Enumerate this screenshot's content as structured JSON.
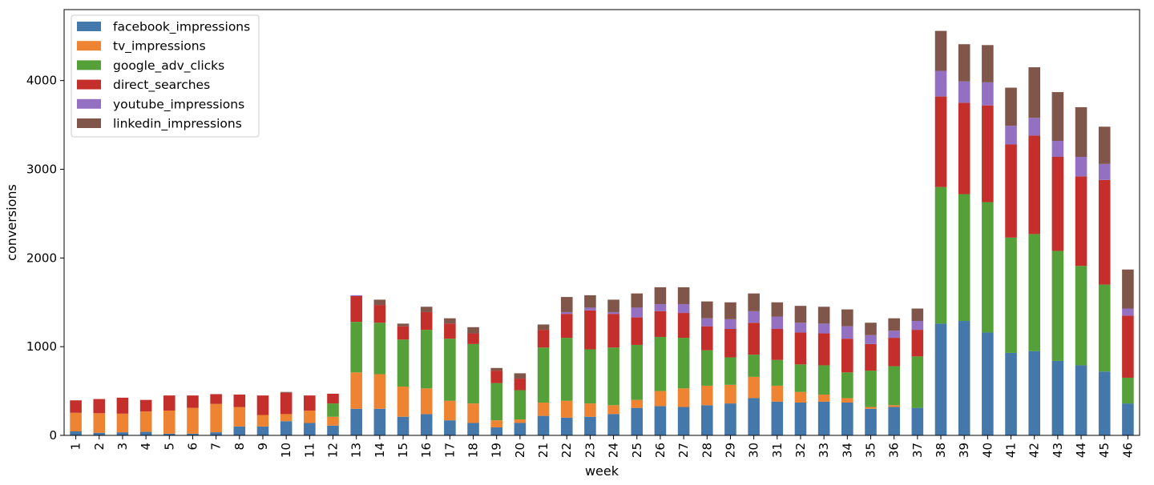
{
  "chart_data": {
    "type": "bar",
    "stacked": true,
    "xlabel": "week",
    "ylabel": "conversions",
    "ylim": [
      0,
      4800
    ],
    "yticks": [
      0,
      1000,
      2000,
      3000,
      4000
    ],
    "grid": false,
    "legend_position": "top-left",
    "categories": [
      "1",
      "2",
      "3",
      "4",
      "5",
      "6",
      "7",
      "8",
      "9",
      "10",
      "11",
      "12",
      "13",
      "14",
      "15",
      "16",
      "17",
      "18",
      "19",
      "20",
      "21",
      "22",
      "23",
      "24",
      "25",
      "26",
      "27",
      "28",
      "29",
      "30",
      "31",
      "32",
      "33",
      "34",
      "35",
      "36",
      "37",
      "38",
      "39",
      "40",
      "41",
      "42",
      "43",
      "44",
      "45",
      "46"
    ],
    "series": [
      {
        "name": "facebook_impressions",
        "color": "#4477aa",
        "values": [
          45,
          30,
          35,
          40,
          20,
          20,
          35,
          100,
          100,
          160,
          140,
          110,
          300,
          300,
          210,
          240,
          170,
          140,
          90,
          140,
          220,
          200,
          210,
          240,
          310,
          330,
          320,
          340,
          360,
          420,
          380,
          370,
          380,
          370,
          300,
          320,
          310,
          1260,
          1290,
          1160,
          930,
          950,
          840,
          790,
          720,
          360
        ]
      },
      {
        "name": "tv_impressions",
        "color": "#ee8432",
        "values": [
          210,
          220,
          210,
          230,
          260,
          290,
          320,
          220,
          130,
          80,
          140,
          100,
          410,
          390,
          340,
          290,
          220,
          220,
          80,
          40,
          150,
          190,
          150,
          100,
          90,
          170,
          210,
          220,
          210,
          240,
          180,
          120,
          80,
          50,
          20,
          20,
          0,
          0,
          0,
          0,
          0,
          0,
          0,
          0,
          0,
          0
        ]
      },
      {
        "name": "google_adv_clicks",
        "color": "#55a038",
        "values": [
          0,
          0,
          0,
          0,
          0,
          0,
          0,
          0,
          0,
          0,
          0,
          150,
          570,
          580,
          530,
          660,
          700,
          670,
          420,
          330,
          620,
          710,
          610,
          650,
          620,
          610,
          570,
          400,
          310,
          250,
          290,
          310,
          330,
          290,
          410,
          440,
          580,
          1540,
          1430,
          1470,
          1300,
          1320,
          1240,
          1120,
          980,
          290
        ]
      },
      {
        "name": "direct_searches",
        "color": "#c42f2c",
        "values": [
          140,
          160,
          180,
          130,
          170,
          140,
          110,
          140,
          220,
          240,
          170,
          110,
          290,
          200,
          150,
          200,
          170,
          120,
          140,
          130,
          200,
          270,
          440,
          380,
          310,
          290,
          280,
          270,
          320,
          360,
          350,
          360,
          360,
          380,
          300,
          320,
          300,
          1020,
          1030,
          1090,
          1050,
          1110,
          1060,
          1010,
          1180,
          700
        ]
      },
      {
        "name": "youtube_impressions",
        "color": "#9370c2",
        "values": [
          0,
          0,
          0,
          0,
          0,
          0,
          0,
          0,
          0,
          0,
          0,
          0,
          10,
          0,
          0,
          0,
          0,
          0,
          0,
          0,
          0,
          20,
          30,
          20,
          110,
          80,
          100,
          90,
          110,
          130,
          140,
          110,
          110,
          140,
          100,
          80,
          100,
          290,
          240,
          260,
          210,
          200,
          180,
          220,
          180,
          80
        ]
      },
      {
        "name": "linkedin_impressions",
        "color": "#80554a",
        "values": [
          0,
          0,
          0,
          0,
          0,
          0,
          0,
          0,
          0,
          10,
          0,
          0,
          0,
          60,
          30,
          60,
          60,
          70,
          30,
          60,
          60,
          170,
          140,
          140,
          160,
          190,
          190,
          190,
          190,
          200,
          160,
          190,
          190,
          190,
          140,
          140,
          140,
          450,
          420,
          420,
          430,
          570,
          550,
          560,
          420,
          440
        ]
      }
    ]
  }
}
